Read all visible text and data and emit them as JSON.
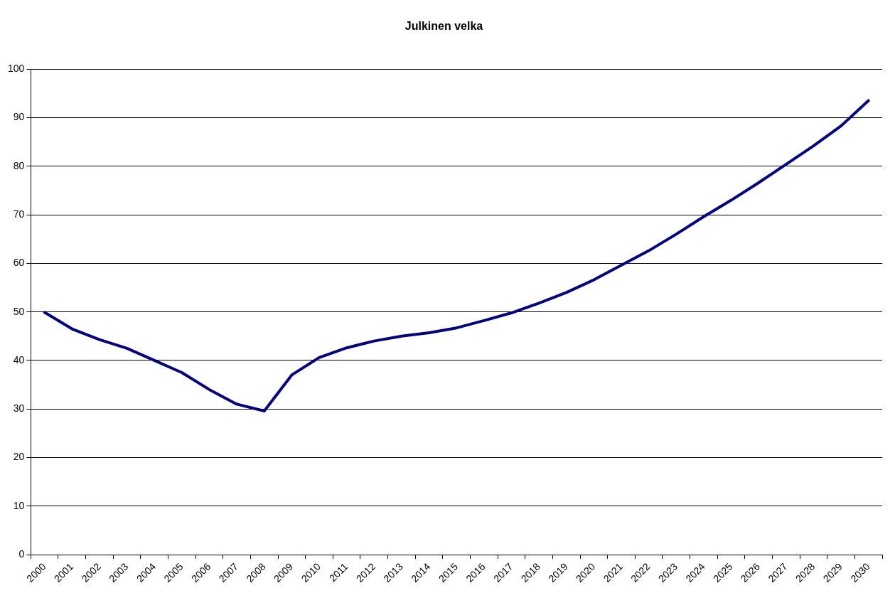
{
  "chart_data": {
    "type": "line",
    "title": "Julkinen velka",
    "categories": [
      "2000",
      "2001",
      "2002",
      "2003",
      "2004",
      "2005",
      "2006",
      "2007",
      "2008",
      "2009",
      "2010",
      "2011",
      "2012",
      "2013",
      "2014",
      "2015",
      "2016",
      "2017",
      "2018",
      "2019",
      "2020",
      "2021",
      "2022",
      "2023",
      "2024",
      "2025",
      "2026",
      "2027",
      "2028",
      "2029",
      "2030"
    ],
    "series": [
      {
        "color": "#000080",
        "values": [
          49.9,
          46.5,
          44.3,
          42.5,
          40,
          37.5,
          34,
          31,
          29.6,
          37,
          40.6,
          42.6,
          44,
          45,
          45.7,
          46.7,
          48.2,
          49.8,
          51.8,
          54,
          56.6,
          59.6,
          62.6,
          66,
          69.6,
          73,
          76.6,
          80.4,
          84.2,
          88.3,
          93.5
        ]
      }
    ],
    "ylim": [
      0,
      100
    ],
    "yticks": [
      0,
      10,
      20,
      30,
      40,
      50,
      60,
      70,
      80,
      90,
      100
    ],
    "grid": "y",
    "legend": false,
    "marker": "none",
    "line_style": "solid"
  }
}
